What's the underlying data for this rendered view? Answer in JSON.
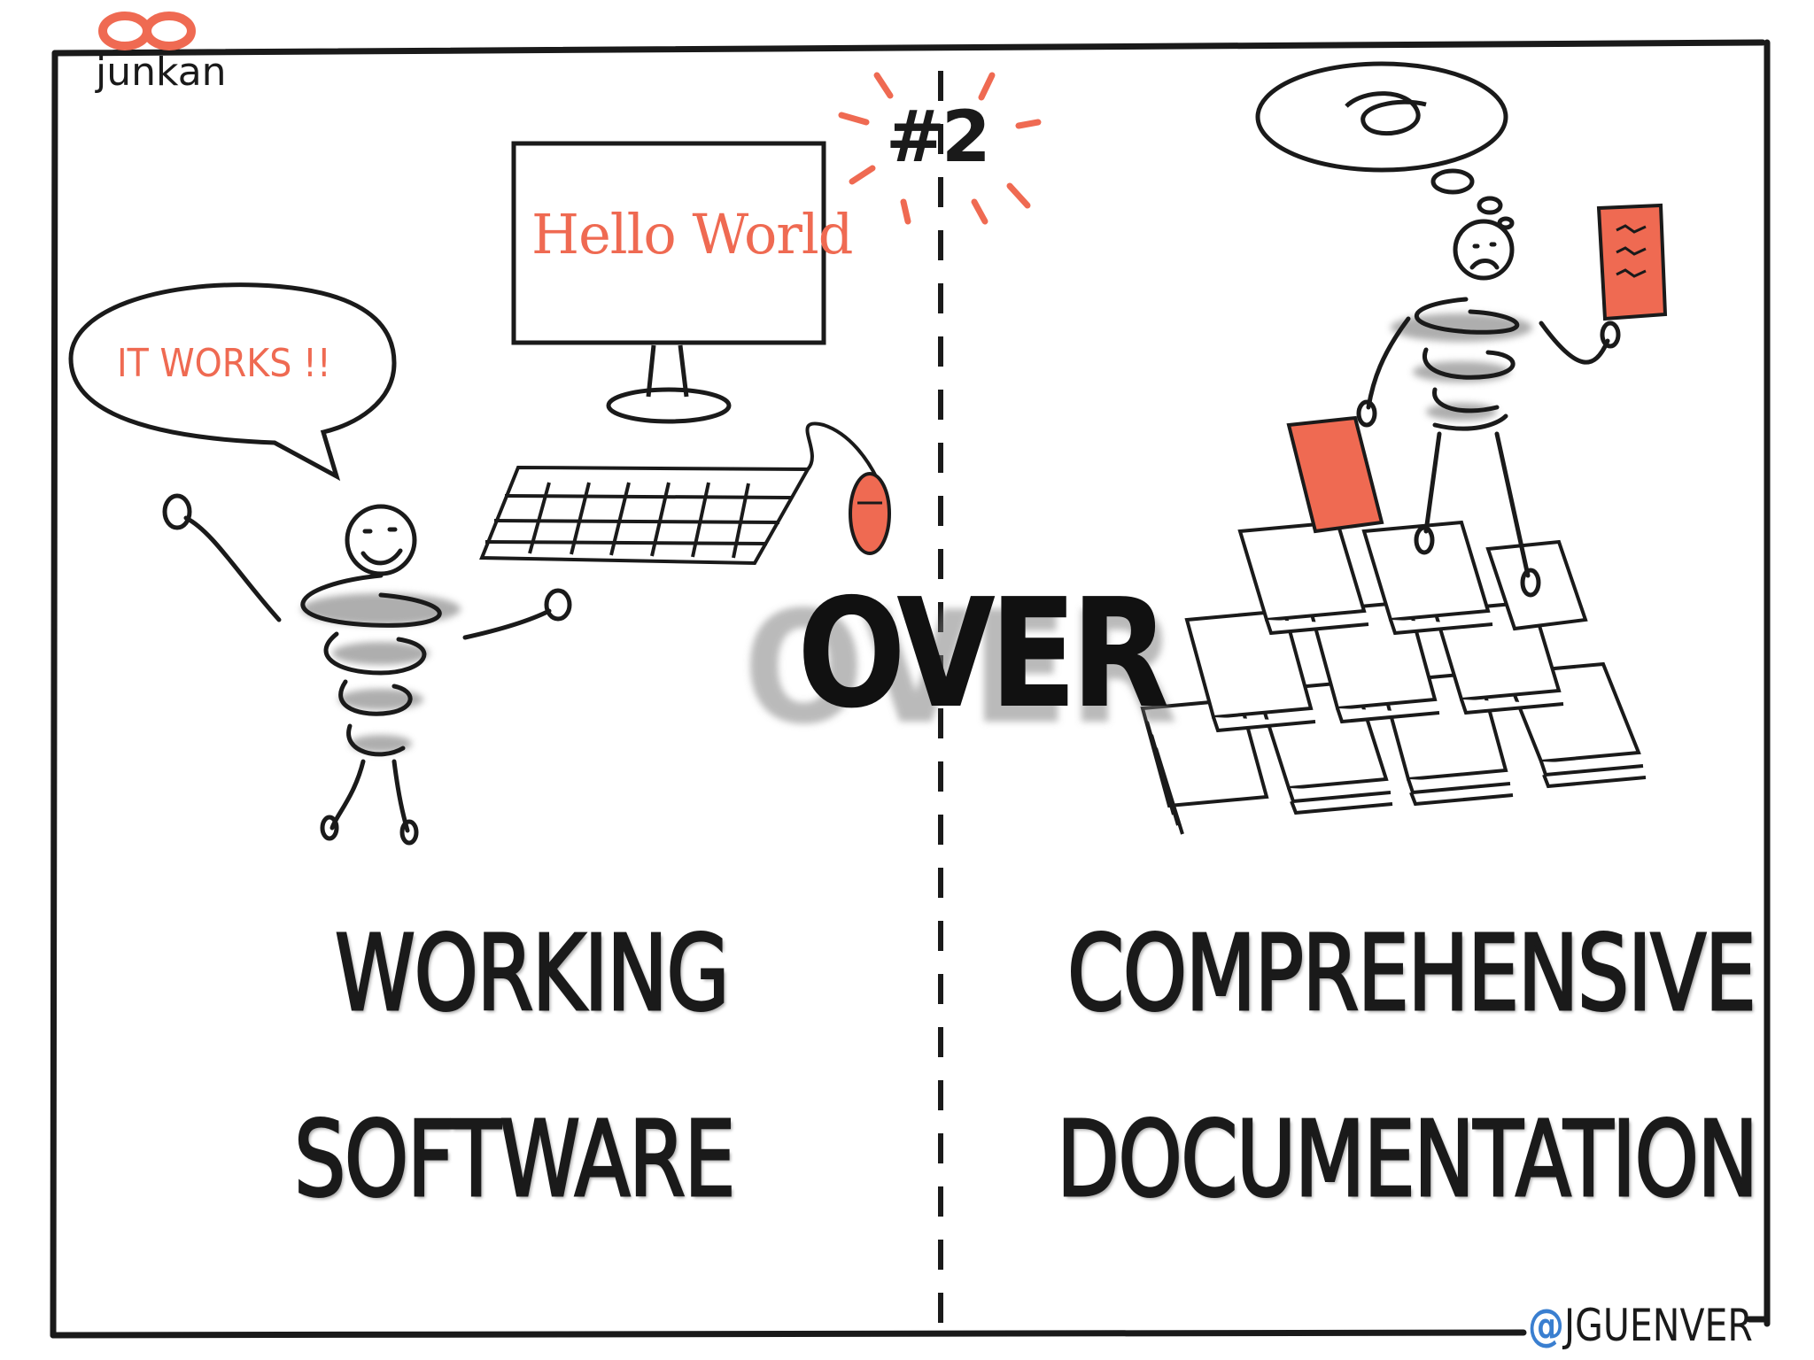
{
  "brand": {
    "name": "junkan",
    "logo_icon": "infinity-icon",
    "color": "#ef6a52"
  },
  "number_badge": "#2",
  "left": {
    "speech_bubble": "IT WORKS !!",
    "screen_text": "Hello World",
    "caption_line1": "WORKING",
    "caption_line2": "SOFTWARE"
  },
  "center": {
    "connector": "OVER"
  },
  "right": {
    "caption_line1": "COMPREHENSIVE",
    "caption_line2": "DOCUMENTATION"
  },
  "credit": {
    "at": "@",
    "handle": "JGUENVER",
    "at_color": "#3a7fd0"
  },
  "colors": {
    "ink": "#1a1a1a",
    "accent": "#ef6a52",
    "shadow": "#9a9a9a"
  }
}
